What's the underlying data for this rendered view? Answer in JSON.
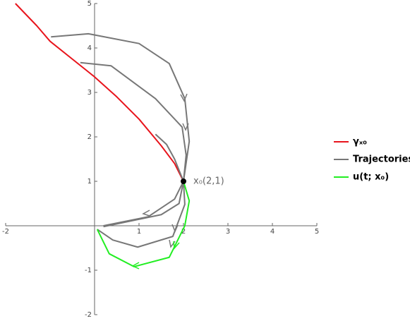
{
  "chart_data": {
    "type": "line",
    "xlim": [
      -2,
      5
    ],
    "ylim": [
      -2,
      5
    ],
    "xticks": [
      -2,
      1,
      2,
      3,
      4,
      5
    ],
    "yticks": [
      -2,
      -1,
      1,
      2,
      3,
      4,
      5
    ],
    "legend": "right",
    "series": [
      {
        "name": "γₓ₀",
        "color": "#e8141c",
        "x": [
          -1.78,
          -1.3,
          -1,
          -0.5,
          0,
          0.5,
          1,
          1.5,
          1.8,
          2
        ],
        "values": [
          5,
          4.5,
          4.15,
          3.75,
          3.35,
          2.9,
          2.4,
          1.8,
          1.4,
          1
        ]
      },
      {
        "name": "Trajectories",
        "color": "#777777",
        "x": [
          -0.98,
          -0.14,
          1.0,
          1.68,
          2.03,
          2.13,
          2.0,
          null,
          -0.32,
          0.37,
          1.37,
          1.97,
          2.06,
          2.0,
          null,
          1.37,
          1.62,
          1.8,
          2.0,
          null,
          2.0,
          1.8,
          1.2,
          0.2,
          null,
          2.0,
          1.9,
          1.5,
          0.2,
          null,
          2.0,
          2.03,
          1.76,
          0.97,
          0.41,
          0.06
        ],
        "values": [
          4.25,
          4.32,
          4.1,
          3.65,
          2.86,
          1.9,
          1,
          null,
          3.67,
          3.6,
          2.86,
          2.22,
          1.59,
          1,
          null,
          2.06,
          1.83,
          1.5,
          1,
          null,
          1,
          0.6,
          0.2,
          0.0,
          null,
          1,
          0.5,
          0.25,
          -0.02,
          null,
          1,
          0.48,
          -0.24,
          -0.48,
          -0.32,
          -0.08
        ]
      },
      {
        "name": "u(t; x₀)",
        "color": "#22ee22",
        "x": [
          0.06,
          0.33,
          0.89,
          1.68,
          2.03,
          2.13,
          2.0
        ],
        "values": [
          -0.08,
          -0.63,
          -0.92,
          -0.71,
          0.0,
          0.56,
          1
        ]
      }
    ],
    "point": {
      "x": 2,
      "y": 1,
      "label": "x₀(2,1)"
    }
  }
}
